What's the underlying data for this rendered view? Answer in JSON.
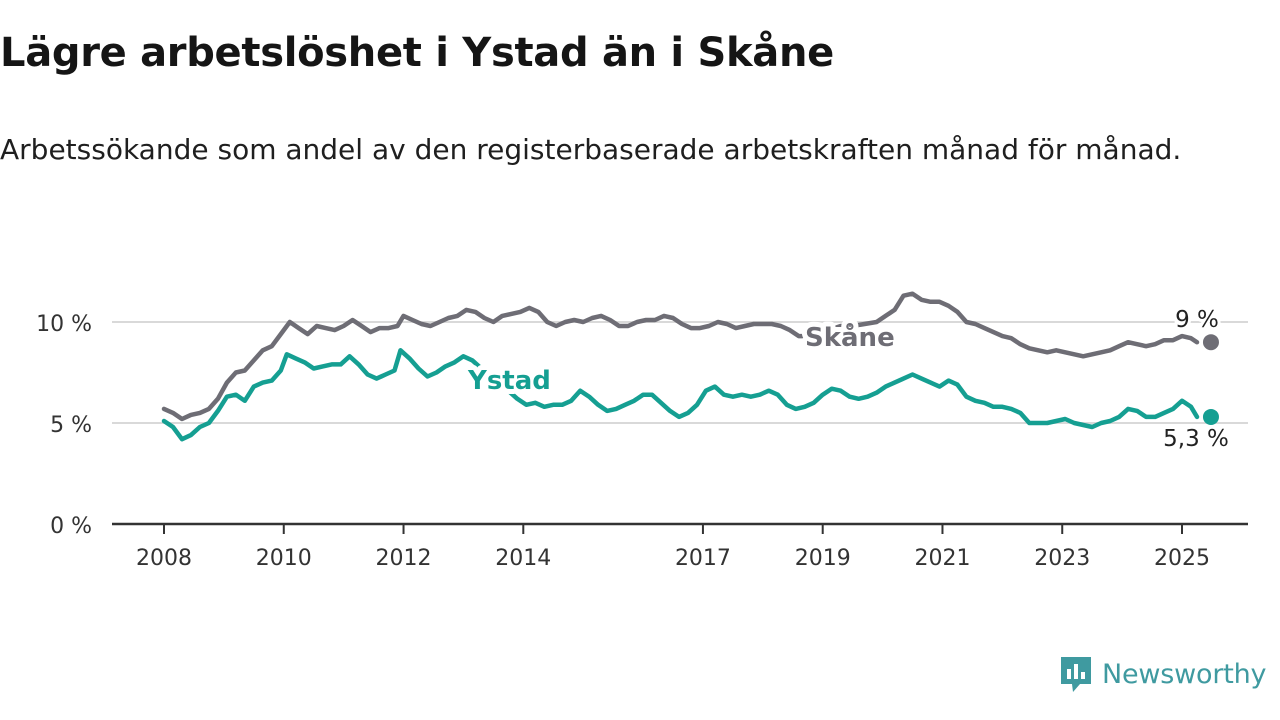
{
  "title": "Lägre arbetslöshet i Ystad än i Skåne",
  "subtitle": "Arbetssökande som andel av den registerbaserade arbetskraften månad för månad.",
  "brand": {
    "name": "Newsworthy",
    "icon": "newsworthy-logo-icon",
    "color": "#3f9aa0"
  },
  "colors": {
    "skane": "#6e6d75",
    "ystad": "#159f92",
    "grid": "#d9d9d9",
    "axis": "#333333"
  },
  "chart_data": {
    "type": "line",
    "title": "Lägre arbetslöshet i Ystad än i Skåne",
    "xlabel": "",
    "ylabel": "",
    "ylim": [
      0,
      10
    ],
    "xlim": [
      2008,
      2025.6
    ],
    "grid": true,
    "legend": "inline labels",
    "y_ticks": [
      {
        "value": 0,
        "label": "0 %"
      },
      {
        "value": 5,
        "label": "5 %"
      },
      {
        "value": 10,
        "label": "10 %"
      }
    ],
    "x_ticks": [
      {
        "value": 2008,
        "label": "2008"
      },
      {
        "value": 2010,
        "label": "2010"
      },
      {
        "value": 2012,
        "label": "2012"
      },
      {
        "value": 2014,
        "label": "2014"
      },
      {
        "value": 2017,
        "label": "2017"
      },
      {
        "value": 2019,
        "label": "2019"
      },
      {
        "value": 2021,
        "label": "2021"
      },
      {
        "value": 2023,
        "label": "2023"
      },
      {
        "value": 2025,
        "label": "2025"
      }
    ],
    "series": [
      {
        "name": "Skåne",
        "key": "skane",
        "end_label": "9 %",
        "points": [
          [
            2008.0,
            5.7
          ],
          [
            2008.15,
            5.5
          ],
          [
            2008.3,
            5.2
          ],
          [
            2008.45,
            5.4
          ],
          [
            2008.6,
            5.5
          ],
          [
            2008.75,
            5.7
          ],
          [
            2008.9,
            6.2
          ],
          [
            2009.05,
            7.0
          ],
          [
            2009.2,
            7.5
          ],
          [
            2009.35,
            7.6
          ],
          [
            2009.5,
            8.1
          ],
          [
            2009.65,
            8.6
          ],
          [
            2009.8,
            8.8
          ],
          [
            2009.95,
            9.4
          ],
          [
            2010.1,
            10.0
          ],
          [
            2010.25,
            9.7
          ],
          [
            2010.4,
            9.4
          ],
          [
            2010.55,
            9.8
          ],
          [
            2010.7,
            9.7
          ],
          [
            2010.85,
            9.6
          ],
          [
            2011.0,
            9.8
          ],
          [
            2011.15,
            10.1
          ],
          [
            2011.3,
            9.8
          ],
          [
            2011.45,
            9.5
          ],
          [
            2011.6,
            9.7
          ],
          [
            2011.75,
            9.7
          ],
          [
            2011.9,
            9.8
          ],
          [
            2012.0,
            10.3
          ],
          [
            2012.15,
            10.1
          ],
          [
            2012.3,
            9.9
          ],
          [
            2012.45,
            9.8
          ],
          [
            2012.6,
            10.0
          ],
          [
            2012.75,
            10.2
          ],
          [
            2012.9,
            10.3
          ],
          [
            2013.05,
            10.6
          ],
          [
            2013.2,
            10.5
          ],
          [
            2013.35,
            10.2
          ],
          [
            2013.5,
            10.0
          ],
          [
            2013.65,
            10.3
          ],
          [
            2013.8,
            10.4
          ],
          [
            2013.95,
            10.5
          ],
          [
            2014.1,
            10.7
          ],
          [
            2014.25,
            10.5
          ],
          [
            2014.4,
            10.0
          ],
          [
            2014.55,
            9.8
          ],
          [
            2014.7,
            10.0
          ],
          [
            2014.85,
            10.1
          ],
          [
            2015.0,
            10.0
          ],
          [
            2015.15,
            10.2
          ],
          [
            2015.3,
            10.3
          ],
          [
            2015.45,
            10.1
          ],
          [
            2015.6,
            9.8
          ],
          [
            2015.75,
            9.8
          ],
          [
            2015.9,
            10.0
          ],
          [
            2016.05,
            10.1
          ],
          [
            2016.2,
            10.1
          ],
          [
            2016.35,
            10.3
          ],
          [
            2016.5,
            10.2
          ],
          [
            2016.65,
            9.9
          ],
          [
            2016.8,
            9.7
          ],
          [
            2016.95,
            9.7
          ],
          [
            2017.1,
            9.8
          ],
          [
            2017.25,
            10.0
          ],
          [
            2017.4,
            9.9
          ],
          [
            2017.55,
            9.7
          ],
          [
            2017.7,
            9.8
          ],
          [
            2017.85,
            9.9
          ],
          [
            2018.0,
            9.9
          ],
          [
            2018.15,
            9.9
          ],
          [
            2018.3,
            9.8
          ],
          [
            2018.45,
            9.6
          ],
          [
            2018.6,
            9.3
          ],
          [
            2018.75,
            9.3
          ],
          [
            2018.95,
            9.4
          ],
          [
            2019.1,
            9.6
          ],
          [
            2019.3,
            9.8
          ],
          [
            2019.5,
            9.8
          ],
          [
            2019.7,
            9.9
          ],
          [
            2019.9,
            10.0
          ],
          [
            2020.05,
            10.3
          ],
          [
            2020.2,
            10.6
          ],
          [
            2020.35,
            11.3
          ],
          [
            2020.5,
            11.4
          ],
          [
            2020.65,
            11.1
          ],
          [
            2020.8,
            11.0
          ],
          [
            2020.95,
            11.0
          ],
          [
            2021.1,
            10.8
          ],
          [
            2021.25,
            10.5
          ],
          [
            2021.4,
            10.0
          ],
          [
            2021.55,
            9.9
          ],
          [
            2021.7,
            9.7
          ],
          [
            2021.85,
            9.5
          ],
          [
            2022.0,
            9.3
          ],
          [
            2022.15,
            9.2
          ],
          [
            2022.3,
            8.9
          ],
          [
            2022.45,
            8.7
          ],
          [
            2022.6,
            8.6
          ],
          [
            2022.75,
            8.5
          ],
          [
            2022.9,
            8.6
          ],
          [
            2023.05,
            8.5
          ],
          [
            2023.2,
            8.4
          ],
          [
            2023.35,
            8.3
          ],
          [
            2023.5,
            8.4
          ],
          [
            2023.65,
            8.5
          ],
          [
            2023.8,
            8.6
          ],
          [
            2023.95,
            8.8
          ],
          [
            2024.1,
            9.0
          ],
          [
            2024.25,
            8.9
          ],
          [
            2024.4,
            8.8
          ],
          [
            2024.55,
            8.9
          ],
          [
            2024.7,
            9.1
          ],
          [
            2024.85,
            9.1
          ],
          [
            2025.0,
            9.3
          ],
          [
            2025.15,
            9.2
          ],
          [
            2025.25,
            9.0
          ]
        ]
      },
      {
        "name": "Ystad",
        "key": "ystad",
        "end_label": "5,3 %",
        "points": [
          [
            2008.0,
            5.1
          ],
          [
            2008.15,
            4.8
          ],
          [
            2008.3,
            4.2
          ],
          [
            2008.45,
            4.4
          ],
          [
            2008.6,
            4.8
          ],
          [
            2008.75,
            5.0
          ],
          [
            2008.9,
            5.6
          ],
          [
            2009.05,
            6.3
          ],
          [
            2009.2,
            6.4
          ],
          [
            2009.35,
            6.1
          ],
          [
            2009.5,
            6.8
          ],
          [
            2009.65,
            7.0
          ],
          [
            2009.8,
            7.1
          ],
          [
            2009.95,
            7.6
          ],
          [
            2010.05,
            8.4
          ],
          [
            2010.2,
            8.2
          ],
          [
            2010.35,
            8.0
          ],
          [
            2010.5,
            7.7
          ],
          [
            2010.65,
            7.8
          ],
          [
            2010.8,
            7.9
          ],
          [
            2010.95,
            7.9
          ],
          [
            2011.1,
            8.3
          ],
          [
            2011.25,
            7.9
          ],
          [
            2011.4,
            7.4
          ],
          [
            2011.55,
            7.2
          ],
          [
            2011.7,
            7.4
          ],
          [
            2011.85,
            7.6
          ],
          [
            2011.95,
            8.6
          ],
          [
            2012.1,
            8.2
          ],
          [
            2012.25,
            7.7
          ],
          [
            2012.4,
            7.3
          ],
          [
            2012.55,
            7.5
          ],
          [
            2012.7,
            7.8
          ],
          [
            2012.85,
            8.0
          ],
          [
            2013.0,
            8.3
          ],
          [
            2013.15,
            8.1
          ],
          [
            2013.3,
            7.7
          ],
          [
            2013.45,
            7.3
          ],
          [
            2013.6,
            7.0
          ],
          [
            2013.75,
            6.6
          ],
          [
            2013.9,
            6.2
          ],
          [
            2014.05,
            5.9
          ],
          [
            2014.2,
            6.0
          ],
          [
            2014.35,
            5.8
          ],
          [
            2014.5,
            5.9
          ],
          [
            2014.65,
            5.9
          ],
          [
            2014.8,
            6.1
          ],
          [
            2014.95,
            6.6
          ],
          [
            2015.1,
            6.3
          ],
          [
            2015.25,
            5.9
          ],
          [
            2015.4,
            5.6
          ],
          [
            2015.55,
            5.7
          ],
          [
            2015.7,
            5.9
          ],
          [
            2015.85,
            6.1
          ],
          [
            2016.0,
            6.4
          ],
          [
            2016.15,
            6.4
          ],
          [
            2016.3,
            6.0
          ],
          [
            2016.45,
            5.6
          ],
          [
            2016.6,
            5.3
          ],
          [
            2016.75,
            5.5
          ],
          [
            2016.9,
            5.9
          ],
          [
            2017.05,
            6.6
          ],
          [
            2017.2,
            6.8
          ],
          [
            2017.35,
            6.4
          ],
          [
            2017.5,
            6.3
          ],
          [
            2017.65,
            6.4
          ],
          [
            2017.8,
            6.3
          ],
          [
            2017.95,
            6.4
          ],
          [
            2018.1,
            6.6
          ],
          [
            2018.25,
            6.4
          ],
          [
            2018.4,
            5.9
          ],
          [
            2018.55,
            5.7
          ],
          [
            2018.7,
            5.8
          ],
          [
            2018.85,
            6.0
          ],
          [
            2019.0,
            6.4
          ],
          [
            2019.15,
            6.7
          ],
          [
            2019.3,
            6.6
          ],
          [
            2019.45,
            6.3
          ],
          [
            2019.6,
            6.2
          ],
          [
            2019.75,
            6.3
          ],
          [
            2019.9,
            6.5
          ],
          [
            2020.05,
            6.8
          ],
          [
            2020.2,
            7.0
          ],
          [
            2020.35,
            7.2
          ],
          [
            2020.5,
            7.4
          ],
          [
            2020.65,
            7.2
          ],
          [
            2020.8,
            7.0
          ],
          [
            2020.95,
            6.8
          ],
          [
            2021.1,
            7.1
          ],
          [
            2021.25,
            6.9
          ],
          [
            2021.4,
            6.3
          ],
          [
            2021.55,
            6.1
          ],
          [
            2021.7,
            6.0
          ],
          [
            2021.85,
            5.8
          ],
          [
            2022.0,
            5.8
          ],
          [
            2022.15,
            5.7
          ],
          [
            2022.3,
            5.5
          ],
          [
            2022.45,
            5.0
          ],
          [
            2022.6,
            5.0
          ],
          [
            2022.75,
            5.0
          ],
          [
            2022.9,
            5.1
          ],
          [
            2023.05,
            5.2
          ],
          [
            2023.2,
            5.0
          ],
          [
            2023.35,
            4.9
          ],
          [
            2023.5,
            4.8
          ],
          [
            2023.65,
            5.0
          ],
          [
            2023.8,
            5.1
          ],
          [
            2023.95,
            5.3
          ],
          [
            2024.1,
            5.7
          ],
          [
            2024.25,
            5.6
          ],
          [
            2024.4,
            5.3
          ],
          [
            2024.55,
            5.3
          ],
          [
            2024.7,
            5.5
          ],
          [
            2024.85,
            5.7
          ],
          [
            2025.0,
            6.1
          ],
          [
            2025.15,
            5.8
          ],
          [
            2025.25,
            5.3
          ]
        ]
      }
    ]
  }
}
